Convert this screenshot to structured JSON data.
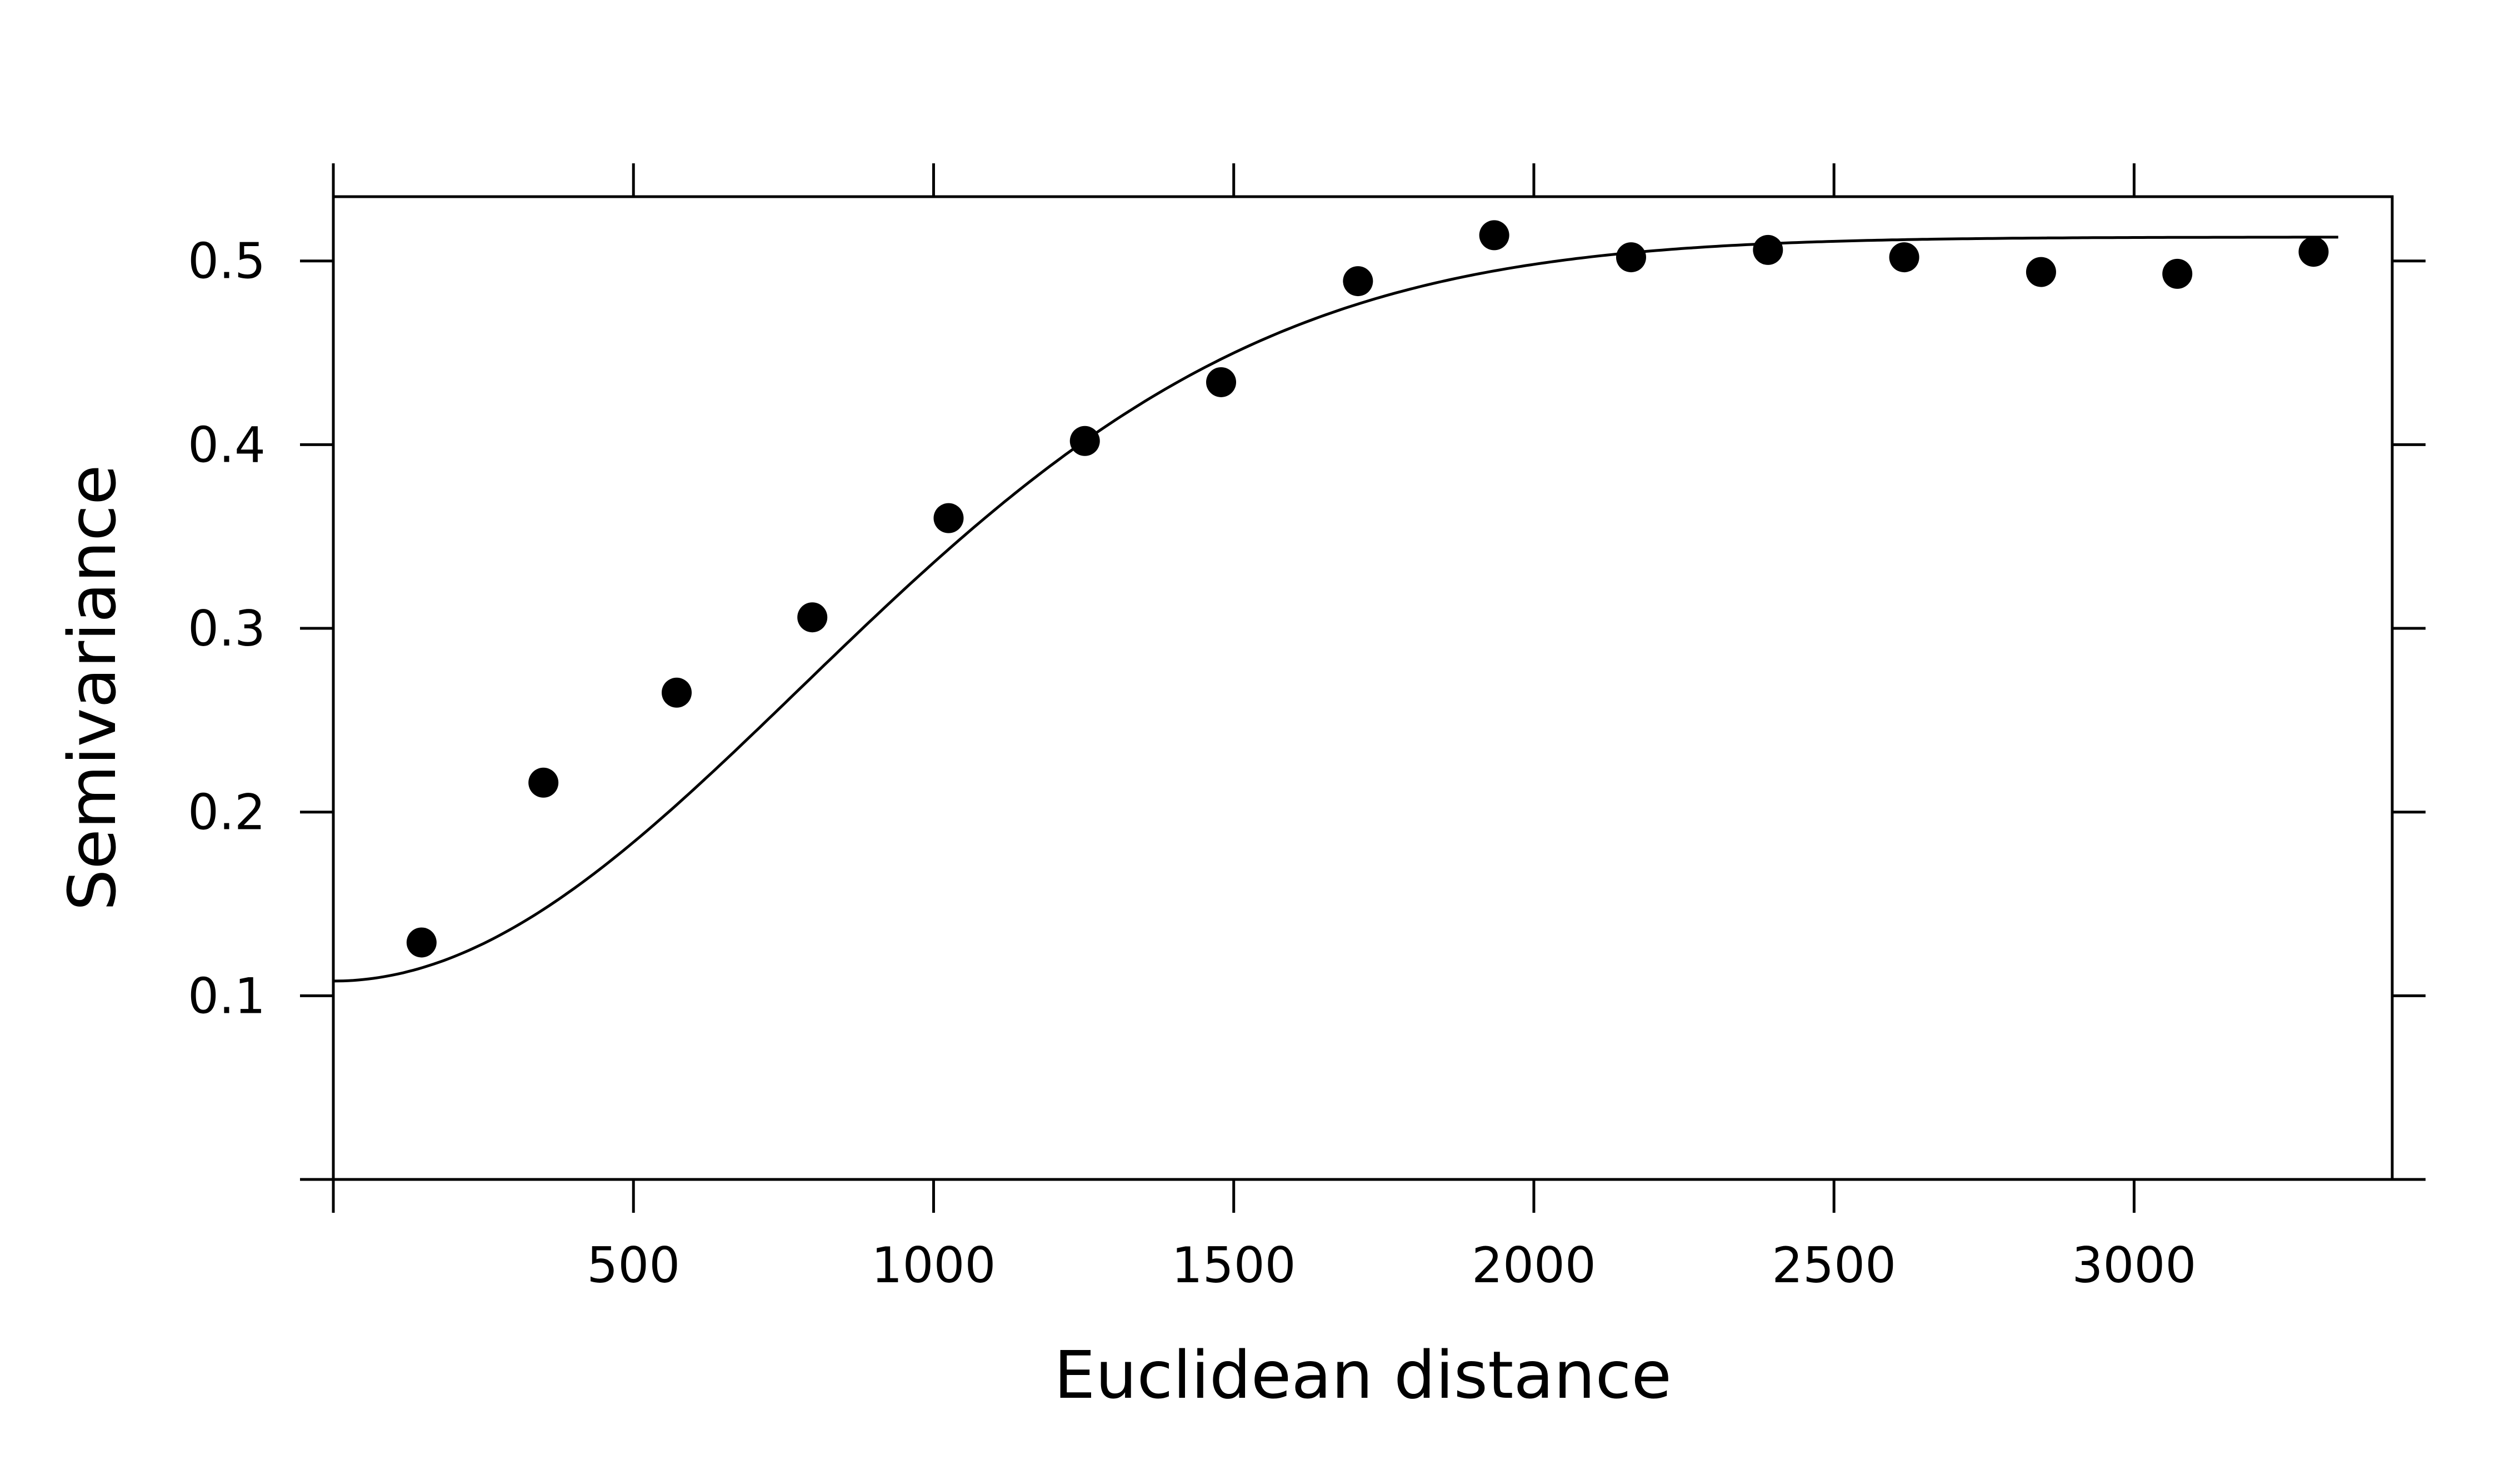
{
  "chart_data": {
    "type": "scatter",
    "title": "",
    "xlabel": "Euclidean distance",
    "ylabel": "Semivariance",
    "xlim": [
      0,
      3430
    ],
    "ylim": [
      0,
      0.535
    ],
    "xticks": [
      500,
      1000,
      1500,
      2000,
      2500,
      3000
    ],
    "xtick_labels": [
      "500",
      "1000",
      "1500",
      "2000",
      "2500",
      "3000"
    ],
    "yticks": [
      0.1,
      0.2,
      0.3,
      0.4,
      0.5
    ],
    "ytick_labels": [
      "0.1",
      "0.2",
      "0.3",
      "0.4",
      "0.5"
    ],
    "grid": false,
    "legend": false,
    "points": {
      "x": [
        147,
        350,
        572,
        798,
        1025,
        1252,
        1479,
        1707,
        1934,
        2162,
        2390,
        2617,
        2845,
        3072,
        3299
      ],
      "y": [
        0.129,
        0.216,
        0.265,
        0.306,
        0.36,
        0.402,
        0.434,
        0.489,
        0.514,
        0.502,
        0.506,
        0.502,
        0.494,
        0.493,
        0.505
      ]
    },
    "fitted_curve": {
      "model": "gaussian",
      "nugget": 0.108,
      "psill": 0.405,
      "range": 1100
    },
    "colors": {
      "points": "#000000",
      "line": "#000000",
      "axes": "#000000"
    }
  }
}
